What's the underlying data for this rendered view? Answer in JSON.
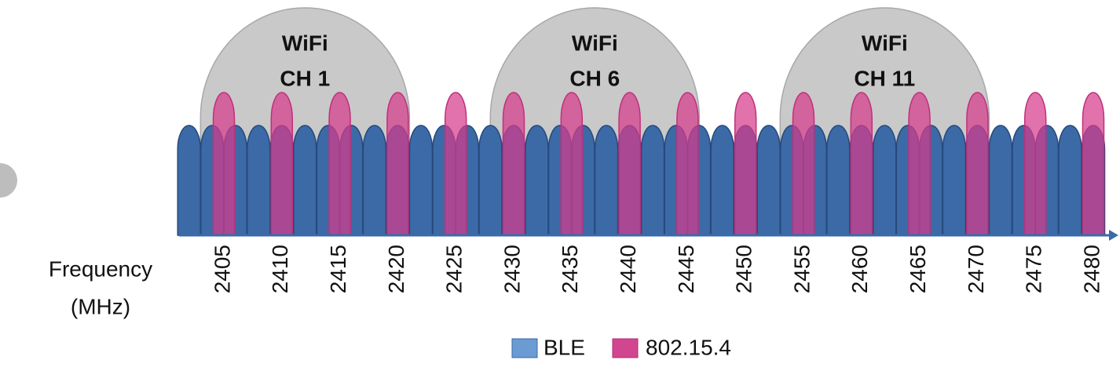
{
  "axis": {
    "label_line1": "Frequency",
    "label_line2": "(MHz)",
    "ticks": [
      "2405",
      "2410",
      "2415",
      "2420",
      "2425",
      "2430",
      "2435",
      "2440",
      "2445",
      "2450",
      "2455",
      "2460",
      "2465",
      "2470",
      "2475",
      "2480"
    ]
  },
  "wifi": [
    {
      "line1": "WiFi",
      "line2": "CH 1"
    },
    {
      "line1": "WiFi",
      "line2": "CH 6"
    },
    {
      "line1": "WiFi",
      "line2": "CH 11"
    }
  ],
  "legend": [
    {
      "label": "BLE"
    },
    {
      "label": "802.15.4"
    }
  ]
}
